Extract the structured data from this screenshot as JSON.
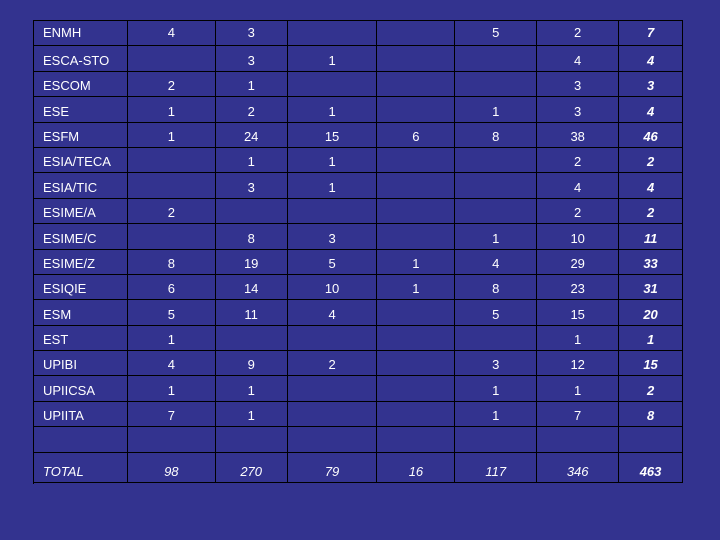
{
  "table": {
    "rows": [
      {
        "name": "ENMH",
        "cols": [
          "4",
          "3",
          "",
          "",
          "5",
          "2",
          "7"
        ]
      },
      {
        "name": "ESCA-STO",
        "cols": [
          "",
          "3",
          "1",
          "",
          "",
          "4",
          "4"
        ]
      },
      {
        "name": "ESCOM",
        "cols": [
          "2",
          "1",
          "",
          "",
          "",
          "3",
          "3"
        ]
      },
      {
        "name": "ESE",
        "cols": [
          "1",
          "2",
          "1",
          "",
          "1",
          "3",
          "4"
        ]
      },
      {
        "name": "ESFM",
        "cols": [
          "1",
          "24",
          "15",
          "6",
          "8",
          "38",
          "46"
        ]
      },
      {
        "name": "ESIA/TECA",
        "cols": [
          "",
          "1",
          "1",
          "",
          "",
          "2",
          "2"
        ]
      },
      {
        "name": "ESIA/TIC",
        "cols": [
          "",
          "3",
          "1",
          "",
          "",
          "4",
          "4"
        ]
      },
      {
        "name": "ESIME/A",
        "cols": [
          "2",
          "",
          "",
          "",
          "",
          "2",
          "2"
        ]
      },
      {
        "name": "ESIME/C",
        "cols": [
          "",
          "8",
          "3",
          "",
          "1",
          "10",
          "11"
        ]
      },
      {
        "name": "ESIME/Z",
        "cols": [
          "8",
          "19",
          "5",
          "1",
          "4",
          "29",
          "33"
        ]
      },
      {
        "name": "ESIQIE",
        "cols": [
          "6",
          "14",
          "10",
          "1",
          "8",
          "23",
          "31"
        ]
      },
      {
        "name": "ESM",
        "cols": [
          "5",
          "11",
          "4",
          "",
          "5",
          "15",
          "20"
        ]
      },
      {
        "name": "EST",
        "cols": [
          "1",
          "",
          "",
          "",
          "",
          "1",
          "1"
        ]
      },
      {
        "name": "UPIBI",
        "cols": [
          "4",
          "9",
          "2",
          "",
          "3",
          "12",
          "15"
        ]
      },
      {
        "name": "UPIICSA",
        "cols": [
          "1",
          "1",
          "",
          "",
          "1",
          "1",
          "2"
        ]
      },
      {
        "name": "UPIITA",
        "cols": [
          "7",
          "1",
          "",
          "",
          "1",
          "7",
          "8"
        ]
      }
    ],
    "total": {
      "name": "TOTAL",
      "cols": [
        "98",
        "270",
        "79",
        "16",
        "117",
        "346",
        "463"
      ]
    }
  }
}
